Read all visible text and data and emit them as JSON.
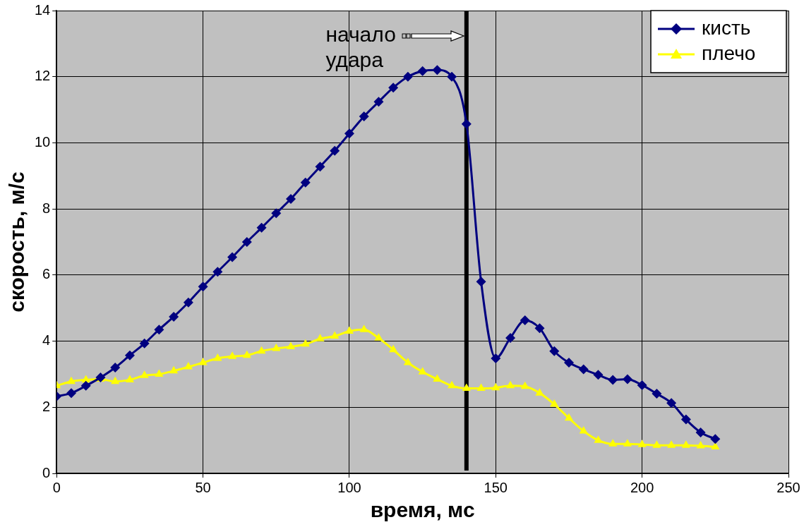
{
  "chart_data": {
    "type": "line",
    "xlabel": "время, мс",
    "ylabel": "скорость, м/с",
    "x": [
      0,
      5,
      10,
      15,
      20,
      25,
      30,
      35,
      40,
      45,
      50,
      55,
      60,
      65,
      70,
      75,
      80,
      85,
      90,
      95,
      100,
      105,
      110,
      115,
      120,
      125,
      130,
      135,
      140,
      145,
      150,
      155,
      160,
      165,
      170,
      175,
      180,
      185,
      190,
      195,
      200,
      205,
      210,
      215,
      220,
      225
    ],
    "series": [
      {
        "name": "кисть",
        "color": "#000080",
        "marker": "diamond",
        "values": [
          2.33,
          2.43,
          2.65,
          2.9,
          3.2,
          3.57,
          3.93,
          4.35,
          4.74,
          5.17,
          5.65,
          6.1,
          6.54,
          7.0,
          7.43,
          7.87,
          8.3,
          8.8,
          9.28,
          9.76,
          10.28,
          10.8,
          11.24,
          11.67,
          12.0,
          12.17,
          12.2,
          12.0,
          10.57,
          5.8,
          3.48,
          4.1,
          4.63,
          4.39,
          3.7,
          3.35,
          3.15,
          2.98,
          2.83,
          2.85,
          2.67,
          2.41,
          2.13,
          1.63,
          1.24,
          1.04
        ]
      },
      {
        "name": "плечо",
        "color": "#ffff00",
        "marker": "triangle",
        "values": [
          2.65,
          2.78,
          2.83,
          2.85,
          2.78,
          2.83,
          2.96,
          3.0,
          3.1,
          3.22,
          3.35,
          3.48,
          3.54,
          3.57,
          3.7,
          3.78,
          3.83,
          3.91,
          4.07,
          4.15,
          4.3,
          4.35,
          4.09,
          3.74,
          3.35,
          3.07,
          2.85,
          2.65,
          2.57,
          2.57,
          2.59,
          2.65,
          2.63,
          2.43,
          2.09,
          1.67,
          1.28,
          1.0,
          0.89,
          0.89,
          0.87,
          0.85,
          0.85,
          0.85,
          0.83,
          0.8
        ]
      }
    ],
    "xlim": [
      0,
      250
    ],
    "xticks": [
      0,
      50,
      100,
      150,
      200,
      250
    ],
    "ylim": [
      0,
      14
    ],
    "yticks": [
      0,
      2,
      4,
      6,
      8,
      10,
      12,
      14
    ],
    "ref_lines": [
      {
        "axis": "x",
        "value": 140,
        "color": "#000000"
      }
    ],
    "annotations": [
      "начало удара"
    ],
    "grid": true,
    "legend": "top right",
    "line_style": "solid"
  }
}
